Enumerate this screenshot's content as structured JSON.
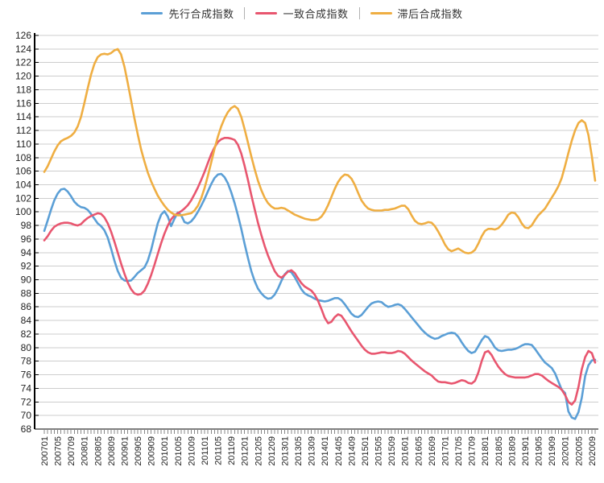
{
  "legend": {
    "items": [
      {
        "label": "先行合成指数",
        "color": "#5B9FD6"
      },
      {
        "label": "一致合成指数",
        "color": "#E8566F"
      },
      {
        "label": "滞后合成指数",
        "color": "#EFAE42"
      }
    ]
  },
  "axes": {
    "y_tick_labels": [
      126,
      124,
      122,
      120,
      118,
      116,
      114,
      112,
      110,
      108,
      106,
      104,
      102,
      100,
      98,
      96,
      94,
      92,
      90,
      88,
      86,
      84,
      82,
      80,
      78,
      76,
      74,
      72,
      70,
      68
    ],
    "x_label_every": 4
  },
  "chart_data": {
    "type": "line",
    "title": "",
    "xlabel": "",
    "ylabel": "",
    "ylim": [
      68,
      126
    ],
    "y_step": 2,
    "grid": "horizontal",
    "legend_position": "top-center",
    "x": [
      "200701",
      "200702",
      "200703",
      "200704",
      "200705",
      "200706",
      "200707",
      "200708",
      "200709",
      "200710",
      "200711",
      "200712",
      "200801",
      "200802",
      "200803",
      "200804",
      "200805",
      "200806",
      "200807",
      "200808",
      "200809",
      "200810",
      "200811",
      "200812",
      "200901",
      "200902",
      "200903",
      "200904",
      "200905",
      "200906",
      "200907",
      "200908",
      "200909",
      "200910",
      "200911",
      "200912",
      "201001",
      "201002",
      "201003",
      "201004",
      "201005",
      "201006",
      "201007",
      "201008",
      "201009",
      "201010",
      "201011",
      "201012",
      "201101",
      "201102",
      "201103",
      "201104",
      "201105",
      "201106",
      "201107",
      "201108",
      "201109",
      "201110",
      "201111",
      "201112",
      "201201",
      "201202",
      "201203",
      "201204",
      "201205",
      "201206",
      "201207",
      "201208",
      "201209",
      "201210",
      "201211",
      "201212",
      "201301",
      "201302",
      "201303",
      "201304",
      "201305",
      "201306",
      "201307",
      "201308",
      "201309",
      "201310",
      "201311",
      "201312",
      "201401",
      "201402",
      "201403",
      "201404",
      "201405",
      "201406",
      "201407",
      "201408",
      "201409",
      "201410",
      "201411",
      "201412",
      "201501",
      "201502",
      "201503",
      "201504",
      "201505",
      "201506",
      "201507",
      "201508",
      "201509",
      "201510",
      "201511",
      "201512",
      "201601",
      "201602",
      "201603",
      "201604",
      "201605",
      "201606",
      "201607",
      "201608",
      "201609",
      "201610",
      "201611",
      "201612",
      "201701",
      "201702",
      "201703",
      "201704",
      "201705",
      "201706",
      "201707",
      "201708",
      "201709",
      "201710",
      "201711",
      "201712",
      "201801",
      "201802",
      "201803",
      "201804",
      "201805",
      "201806",
      "201807",
      "201808",
      "201809",
      "201810",
      "201811",
      "201812",
      "201901",
      "201902",
      "201903",
      "201904",
      "201905",
      "201906",
      "201907",
      "201908",
      "201909",
      "201910",
      "201911",
      "201912",
      "202001",
      "202002",
      "202003",
      "202004",
      "202005",
      "202006",
      "202007",
      "202008",
      "202009",
      "202010"
    ],
    "series": [
      {
        "name": "先行合成指数",
        "color": "#5B9FD6",
        "values": [
          97.2,
          98.7,
          100.3,
          101.7,
          102.7,
          103.3,
          103.4,
          103.0,
          102.3,
          101.5,
          101.0,
          100.7,
          100.6,
          100.3,
          99.7,
          99.0,
          98.3,
          97.9,
          97.3,
          96.2,
          94.6,
          92.8,
          91.3,
          90.3,
          89.9,
          89.8,
          89.9,
          90.4,
          91.0,
          91.4,
          91.8,
          92.8,
          94.4,
          96.4,
          98.3,
          99.6,
          100.1,
          99.3,
          97.9,
          99.0,
          99.9,
          99.5,
          98.5,
          98.3,
          98.6,
          99.2,
          100.0,
          100.9,
          101.9,
          103.0,
          104.1,
          105.0,
          105.5,
          105.6,
          105.1,
          104.2,
          102.9,
          101.3,
          99.5,
          97.5,
          95.3,
          93.2,
          91.3,
          89.8,
          88.7,
          88.0,
          87.5,
          87.2,
          87.3,
          87.8,
          88.7,
          89.8,
          90.8,
          91.3,
          91.1,
          90.4,
          89.5,
          88.6,
          88.0,
          87.7,
          87.5,
          87.2,
          87.0,
          86.9,
          86.8,
          86.9,
          87.1,
          87.3,
          87.3,
          87.0,
          86.4,
          85.7,
          85.0,
          84.6,
          84.5,
          84.8,
          85.4,
          86.0,
          86.5,
          86.7,
          86.8,
          86.7,
          86.3,
          86.0,
          86.1,
          86.3,
          86.4,
          86.2,
          85.7,
          85.1,
          84.5,
          83.9,
          83.3,
          82.7,
          82.2,
          81.8,
          81.5,
          81.3,
          81.4,
          81.7,
          81.9,
          82.1,
          82.2,
          82.1,
          81.6,
          80.8,
          80.1,
          79.5,
          79.2,
          79.4,
          80.2,
          81.1,
          81.7,
          81.5,
          80.8,
          80.0,
          79.6,
          79.5,
          79.6,
          79.7,
          79.7,
          79.8,
          80.0,
          80.3,
          80.5,
          80.5,
          80.4,
          79.8,
          79.1,
          78.4,
          77.8,
          77.4,
          77.0,
          76.2,
          75.0,
          73.8,
          73.3,
          70.6,
          69.7,
          69.5,
          70.5,
          72.6,
          75.8,
          77.4,
          78.1,
          78.2
        ]
      },
      {
        "name": "一致合成指数",
        "color": "#E8566F",
        "values": [
          95.8,
          96.4,
          97.2,
          97.8,
          98.1,
          98.3,
          98.4,
          98.4,
          98.3,
          98.1,
          98.0,
          98.2,
          98.7,
          99.1,
          99.4,
          99.6,
          99.8,
          99.7,
          99.2,
          98.3,
          97.1,
          95.6,
          94.0,
          92.4,
          90.9,
          89.6,
          88.6,
          88.0,
          87.8,
          87.9,
          88.4,
          89.4,
          90.7,
          92.2,
          93.8,
          95.4,
          96.8,
          98.0,
          98.9,
          99.5,
          99.8,
          100.1,
          100.5,
          101.0,
          101.7,
          102.6,
          103.6,
          104.7,
          105.9,
          107.2,
          108.5,
          109.5,
          110.3,
          110.7,
          110.9,
          110.9,
          110.8,
          110.6,
          109.9,
          108.6,
          106.8,
          104.7,
          102.5,
          100.4,
          98.4,
          96.6,
          95.0,
          93.6,
          92.4,
          91.3,
          90.6,
          90.3,
          90.7,
          91.2,
          91.4,
          91.0,
          90.2,
          89.5,
          89.0,
          88.7,
          88.4,
          87.8,
          86.9,
          85.7,
          84.4,
          83.6,
          83.8,
          84.5,
          84.9,
          84.7,
          84.0,
          83.2,
          82.4,
          81.7,
          81.0,
          80.3,
          79.7,
          79.3,
          79.1,
          79.1,
          79.2,
          79.3,
          79.3,
          79.2,
          79.2,
          79.3,
          79.5,
          79.4,
          79.1,
          78.6,
          78.1,
          77.7,
          77.3,
          76.9,
          76.5,
          76.2,
          75.9,
          75.4,
          75.0,
          74.9,
          74.9,
          74.8,
          74.7,
          74.8,
          75.0,
          75.2,
          75.1,
          74.8,
          74.7,
          75.1,
          76.3,
          78.0,
          79.3,
          79.5,
          78.9,
          78.0,
          77.2,
          76.6,
          76.1,
          75.8,
          75.7,
          75.6,
          75.6,
          75.6,
          75.6,
          75.7,
          75.9,
          76.1,
          76.1,
          75.9,
          75.5,
          75.1,
          74.8,
          74.5,
          74.2,
          73.8,
          73.0,
          72.0,
          71.6,
          72.2,
          74.2,
          76.8,
          78.6,
          79.5,
          79.2,
          77.8
        ]
      },
      {
        "name": "滞后合成指数",
        "color": "#EFAE42",
        "values": [
          105.9,
          106.7,
          107.8,
          108.9,
          109.8,
          110.4,
          110.7,
          110.9,
          111.2,
          111.7,
          112.6,
          114.0,
          116.0,
          118.2,
          120.2,
          121.8,
          122.8,
          123.2,
          123.3,
          123.2,
          123.4,
          123.8,
          124.0,
          123.2,
          121.4,
          119.0,
          116.4,
          113.8,
          111.4,
          109.2,
          107.4,
          105.8,
          104.5,
          103.4,
          102.4,
          101.6,
          100.9,
          100.3,
          99.9,
          99.6,
          99.5,
          99.5,
          99.6,
          99.7,
          99.8,
          100.2,
          100.9,
          102.0,
          103.5,
          105.3,
          107.3,
          109.3,
          111.1,
          112.6,
          113.8,
          114.7,
          115.3,
          115.6,
          115.2,
          114.0,
          112.2,
          110.2,
          108.2,
          106.3,
          104.6,
          103.2,
          102.1,
          101.3,
          100.8,
          100.5,
          100.5,
          100.6,
          100.5,
          100.2,
          99.9,
          99.6,
          99.4,
          99.2,
          99.0,
          98.9,
          98.8,
          98.8,
          98.9,
          99.3,
          100.0,
          101.0,
          102.2,
          103.4,
          104.4,
          105.1,
          105.5,
          105.4,
          104.9,
          104.0,
          102.8,
          101.7,
          101.0,
          100.5,
          100.3,
          100.2,
          100.2,
          100.2,
          100.3,
          100.3,
          100.4,
          100.5,
          100.7,
          100.9,
          100.9,
          100.4,
          99.5,
          98.7,
          98.3,
          98.2,
          98.3,
          98.5,
          98.4,
          97.9,
          97.1,
          96.2,
          95.2,
          94.5,
          94.2,
          94.4,
          94.6,
          94.3,
          94.0,
          93.9,
          94.0,
          94.4,
          95.3,
          96.4,
          97.2,
          97.5,
          97.5,
          97.4,
          97.6,
          98.1,
          98.8,
          99.6,
          99.9,
          99.8,
          99.2,
          98.3,
          97.7,
          97.6,
          98.0,
          98.8,
          99.5,
          100.0,
          100.5,
          101.3,
          102.1,
          102.9,
          103.8,
          105.0,
          106.8,
          108.7,
          110.5,
          112.0,
          113.1,
          113.5,
          113.1,
          111.3,
          108.2,
          104.6
        ]
      }
    ]
  }
}
